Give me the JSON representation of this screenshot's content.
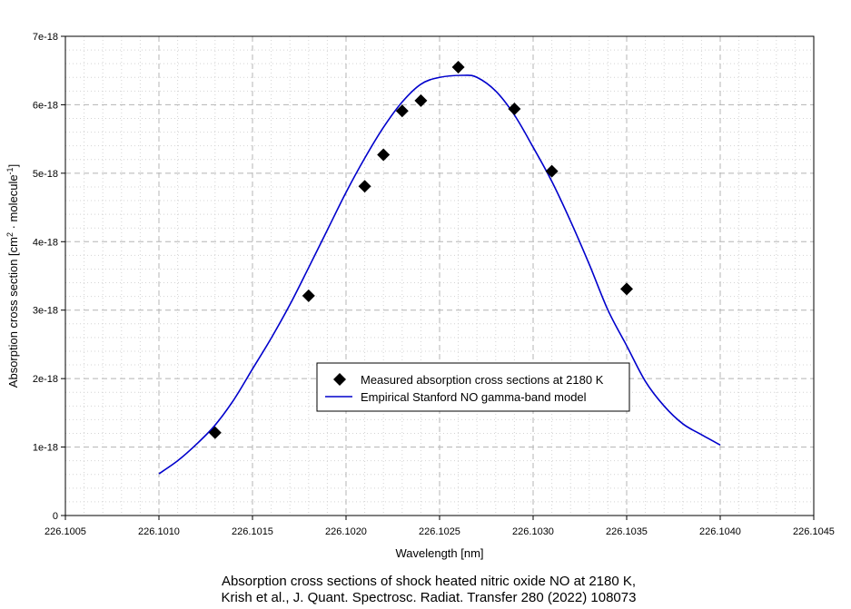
{
  "chart_data": {
    "type": "scatter",
    "xlabel": "Wavelength [nm]",
    "ylabel_parts": {
      "main": "Absorption cross section [cm",
      "sup1": "2",
      "mid": " · molecule",
      "sup2": "-1",
      "end": "]"
    },
    "xlim": [
      226.1005,
      226.1045
    ],
    "ylim": [
      0,
      7e-18
    ],
    "x_ticks": [
      226.1005,
      226.101,
      226.1015,
      226.102,
      226.1025,
      226.103,
      226.1035,
      226.104,
      226.1045
    ],
    "x_tick_labels": [
      "226.1005",
      "226.1010",
      "226.1015",
      "226.1020",
      "226.1025",
      "226.1030",
      "226.1035",
      "226.1040",
      "226.1045"
    ],
    "y_ticks": [
      0,
      1e-18,
      2e-18,
      3e-18,
      4e-18,
      5e-18,
      6e-18,
      7e-18
    ],
    "y_tick_labels": [
      "0",
      "1e-18",
      "2e-18",
      "3e-18",
      "4e-18",
      "5e-18",
      "6e-18",
      "7e-18"
    ],
    "grid": true,
    "legend_position": "center",
    "series": [
      {
        "name": "Measured absorption cross sections at 2180 K",
        "kind": "markers",
        "marker": "diamond",
        "color": "#000000",
        "points": [
          [
            226.1013,
            1.21e-18
          ],
          [
            226.1018,
            3.21e-18
          ],
          [
            226.1021,
            4.81e-18
          ],
          [
            226.1022,
            5.27e-18
          ],
          [
            226.1023,
            5.91e-18
          ],
          [
            226.1024,
            6.06e-18
          ],
          [
            226.1026,
            6.55e-18
          ],
          [
            226.1029,
            5.94e-18
          ],
          [
            226.1031,
            5.03e-18
          ],
          [
            226.1035,
            3.31e-18
          ]
        ]
      },
      {
        "name": "Empirical Stanford NO gamma-band model",
        "kind": "line",
        "color": "#0000cc",
        "x_range": [
          226.101,
          226.104
        ],
        "points": [
          [
            226.101,
            6.1e-19
          ],
          [
            226.1011,
            8e-19
          ],
          [
            226.1012,
            1.04e-18
          ],
          [
            226.1013,
            1.32e-18
          ],
          [
            226.1014,
            1.69e-18
          ],
          [
            226.1015,
            2.14e-18
          ],
          [
            226.1016,
            2.59e-18
          ],
          [
            226.1017,
            3.08e-18
          ],
          [
            226.1018,
            3.62e-18
          ],
          [
            226.1019,
            4.17e-18
          ],
          [
            226.102,
            4.72e-18
          ],
          [
            226.1021,
            5.22e-18
          ],
          [
            226.1022,
            5.67e-18
          ],
          [
            226.1023,
            6.04e-18
          ],
          [
            226.1024,
            6.3e-18
          ],
          [
            226.1025,
            6.4e-18
          ],
          [
            226.10263,
            6.43e-18
          ],
          [
            226.1027,
            6.4e-18
          ],
          [
            226.1028,
            6.2e-18
          ],
          [
            226.1029,
            5.85e-18
          ],
          [
            226.103,
            5.38e-18
          ],
          [
            226.1031,
            4.88e-18
          ],
          [
            226.1032,
            4.3e-18
          ],
          [
            226.1033,
            3.67e-18
          ],
          [
            226.1034,
            3e-18
          ],
          [
            226.1035,
            2.48e-18
          ],
          [
            226.1036,
            1.96e-18
          ],
          [
            226.1037,
            1.6e-18
          ],
          [
            226.1038,
            1.34e-18
          ],
          [
            226.1039,
            1.18e-18
          ],
          [
            226.104,
            1.03e-18
          ]
        ]
      }
    ],
    "caption": [
      "Absorption cross sections of shock heated nitric oxide NO at 2180 K,",
      "Krish et al., J. Quant. Spectrosc. Radiat. Transfer 280 (2022) 108073"
    ]
  }
}
